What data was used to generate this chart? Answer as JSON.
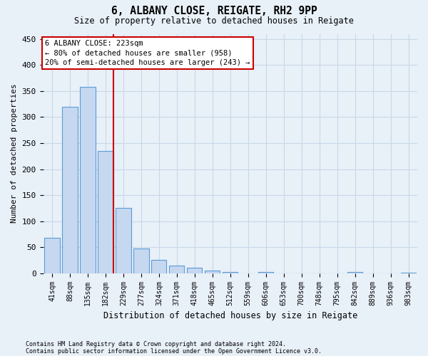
{
  "title1": "6, ALBANY CLOSE, REIGATE, RH2 9PP",
  "title2": "Size of property relative to detached houses in Reigate",
  "xlabel": "Distribution of detached houses by size in Reigate",
  "ylabel": "Number of detached properties",
  "footnote1": "Contains HM Land Registry data © Crown copyright and database right 2024.",
  "footnote2": "Contains public sector information licensed under the Open Government Licence v3.0.",
  "categories": [
    "41sqm",
    "88sqm",
    "135sqm",
    "182sqm",
    "229sqm",
    "277sqm",
    "324sqm",
    "371sqm",
    "418sqm",
    "465sqm",
    "512sqm",
    "559sqm",
    "606sqm",
    "653sqm",
    "700sqm",
    "748sqm",
    "795sqm",
    "842sqm",
    "889sqm",
    "936sqm",
    "983sqm"
  ],
  "values": [
    68,
    320,
    358,
    235,
    125,
    48,
    26,
    15,
    11,
    5,
    3,
    0,
    3,
    0,
    0,
    0,
    0,
    2,
    0,
    0,
    1
  ],
  "bar_color": "#c5d8f0",
  "bar_edge_color": "#5b9bd5",
  "grid_color": "#c8d8e8",
  "background_color": "#e8f0f8",
  "vline_color": "#cc0000",
  "annotation_line1": "6 ALBANY CLOSE: 223sqm",
  "annotation_line2": "← 80% of detached houses are smaller (958)",
  "annotation_line3": "20% of semi-detached houses are larger (243) →",
  "annotation_box_color": "#ffffff",
  "annotation_box_edge": "#cc0000",
  "ylim": [
    0,
    460
  ],
  "yticks": [
    0,
    50,
    100,
    150,
    200,
    250,
    300,
    350,
    400,
    450
  ]
}
